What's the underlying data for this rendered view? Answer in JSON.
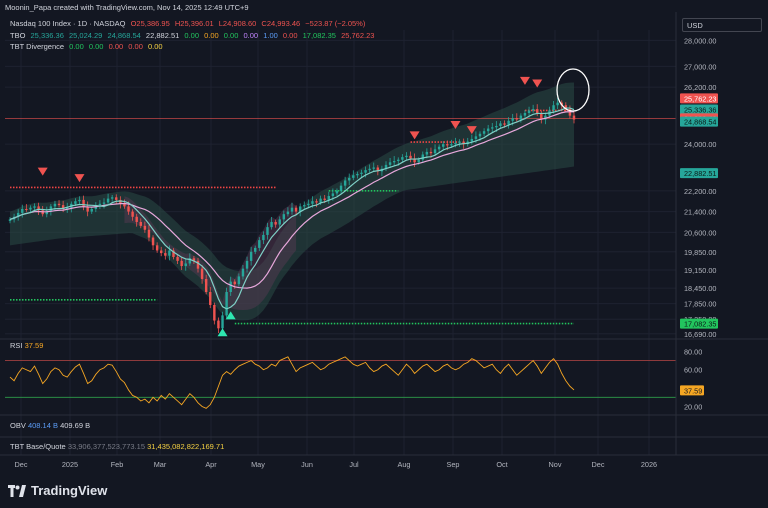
{
  "header": {
    "credit": "Moonin_Papa created with TradingView.com, Nov 14, 2025 12:49 UTC+9",
    "symbol": "Nasdaq 100 Index · 1D · NASDAQ",
    "ohlc": {
      "o": "O25,386.95",
      "h": "H25,396.01",
      "l": "L24,908.60",
      "c": "C24,993.46",
      "chg": "−523.87 (−2.05%)"
    },
    "tbo_name": "TBO",
    "tbo_values": [
      "25,336.36",
      "25,024.29",
      "24,868.54",
      "22,882.51",
      "0.00",
      "0.00",
      "0.00",
      "0.00",
      "1.00",
      "0.00",
      "17,082.35",
      "25,762.23"
    ],
    "tbt_div_name": "TBT Divergence",
    "tbt_div_values": [
      "0.00",
      "0.00",
      "0.00",
      "0.00",
      "0.00"
    ]
  },
  "currency": "USD",
  "rsi": {
    "name": "RSI",
    "value": "37.59",
    "levels": [
      "80.00",
      "60.00",
      "40.00",
      "20.00"
    ]
  },
  "obv": {
    "name": "OBV",
    "v1": "408.14 B",
    "v2": "409.69 B"
  },
  "tbt_bq": {
    "name": "TBT Base/Quote",
    "v1": "33,906,377,523,773.15",
    "v2": "31,435,082,822,169.71"
  },
  "branding": "TradingView",
  "colors": {
    "bg": "#131722",
    "up": "#26a69a",
    "down": "#ef5350",
    "fast_ma": "#7fd1c7",
    "slow_ma": "#e0a0d8",
    "rsi": "#f5a623",
    "green_dots": "#22c55e",
    "red_dots": "#ef4444",
    "blue": "#5b9cf6"
  },
  "chart_data": {
    "type": "candlestick",
    "symbol": "Nasdaq 100 Index",
    "timeframe": "1D",
    "x_ticks": [
      "Dec",
      "2025",
      "Feb",
      "Mar",
      "Apr",
      "May",
      "Jun",
      "Jul",
      "Aug",
      "Sep",
      "Oct",
      "Nov",
      "Dec",
      "2026"
    ],
    "y_ticks": [
      28000,
      27000,
      26200,
      24000,
      22200,
      21400,
      20600,
      19850,
      19150,
      18450,
      17850,
      17250,
      16690
    ],
    "y_tick_labels": [
      "28,000.00",
      "27,000.00",
      "26,200.00",
      "24,000.00",
      "22,200.00",
      "21,400.00",
      "20,600.00",
      "19,850.00",
      "19,150.00",
      "18,450.00",
      "17,850.00",
      "17,250.00",
      "16,690.00"
    ],
    "ylim": [
      16450,
      28400
    ],
    "price_labels": [
      {
        "value": 25762.23,
        "text": "25,762.23",
        "color": "#ef5350"
      },
      {
        "value": 25336.36,
        "text": "25,336.36",
        "color": "#26a69a"
      },
      {
        "value": 25024.29,
        "text": "25,024.29",
        "color": "#26a69a"
      },
      {
        "value": 24993.46,
        "text": "24,993.46",
        "color": "#ef5350"
      },
      {
        "value": 24868.54,
        "text": "24,868.54",
        "color": "#26a69a"
      },
      {
        "value": 22882.51,
        "text": "22,882.51",
        "color": "#26a69a"
      },
      {
        "value": 17082.35,
        "text": "17,082.35",
        "color": "#22c55e"
      }
    ],
    "close_series": [
      21100,
      21200,
      21350,
      21500,
      21480,
      21550,
      21600,
      21450,
      21300,
      21400,
      21600,
      21700,
      21650,
      21500,
      21550,
      21700,
      21800,
      21850,
      21600,
      21400,
      21500,
      21650,
      21700,
      21750,
      21900,
      21950,
      21850,
      21700,
      21600,
      21400,
      21200,
      21000,
      20850,
      20700,
      20400,
      20100,
      19900,
      19800,
      19700,
      19900,
      19650,
      19500,
      19300,
      19400,
      19600,
      19500,
      19200,
      18800,
      18300,
      17800,
      17200,
      16900,
      17400,
      18300,
      18700,
      18600,
      18900,
      19200,
      19500,
      19850,
      20000,
      20300,
      20500,
      20800,
      21000,
      20900,
      21100,
      21300,
      21400,
      21550,
      21400,
      21600,
      21650,
      21700,
      21800,
      21750,
      21900,
      21850,
      22000,
      22100,
      22200,
      22400,
      22600,
      22700,
      22800,
      22850,
      22900,
      23000,
      23050,
      23100,
      22950,
      23050,
      23200,
      23300,
      23350,
      23400,
      23500,
      23550,
      23450,
      23300,
      23400,
      23600,
      23700,
      23650,
      23800,
      23900,
      24000,
      23950,
      24000,
      24050,
      24100,
      24000,
      24100,
      24200,
      24300,
      24400,
      24500,
      24600,
      24650,
      24700,
      24800,
      24750,
      24900,
      25000,
      24950,
      25100,
      25200,
      25300,
      25350,
      25200,
      24950,
      25100,
      25300,
      25500,
      25600,
      25500,
      25350,
      25100,
      24950
    ],
    "rsi_series": [
      52,
      48,
      56,
      62,
      60,
      58,
      64,
      55,
      45,
      50,
      58,
      62,
      60,
      54,
      52,
      58,
      63,
      66,
      56,
      45,
      48,
      55,
      60,
      62,
      66,
      65,
      58,
      50,
      46,
      38,
      32,
      30,
      26,
      28,
      24,
      30,
      26,
      32,
      28,
      34,
      30,
      26,
      22,
      28,
      34,
      30,
      24,
      20,
      18,
      22,
      30,
      42,
      54,
      58,
      55,
      60,
      64,
      66,
      68,
      70,
      66,
      64,
      60,
      62,
      66,
      64,
      70,
      72,
      74,
      66,
      58,
      62,
      64,
      66,
      68,
      64,
      60,
      62,
      66,
      68,
      70,
      72,
      74,
      70,
      66,
      64,
      66,
      68,
      62,
      58,
      60,
      64,
      66,
      62,
      58,
      54,
      60,
      66,
      62,
      56,
      60,
      64,
      66,
      62,
      58,
      60,
      64,
      66,
      62,
      60,
      62,
      66,
      68,
      72,
      70,
      66,
      62,
      64,
      66,
      60,
      56,
      62,
      66,
      60,
      54,
      58,
      62,
      66,
      70,
      64,
      56,
      62,
      68,
      72,
      66,
      56,
      48,
      42,
      38
    ],
    "rsi_ylim": [
      14,
      88
    ]
  }
}
